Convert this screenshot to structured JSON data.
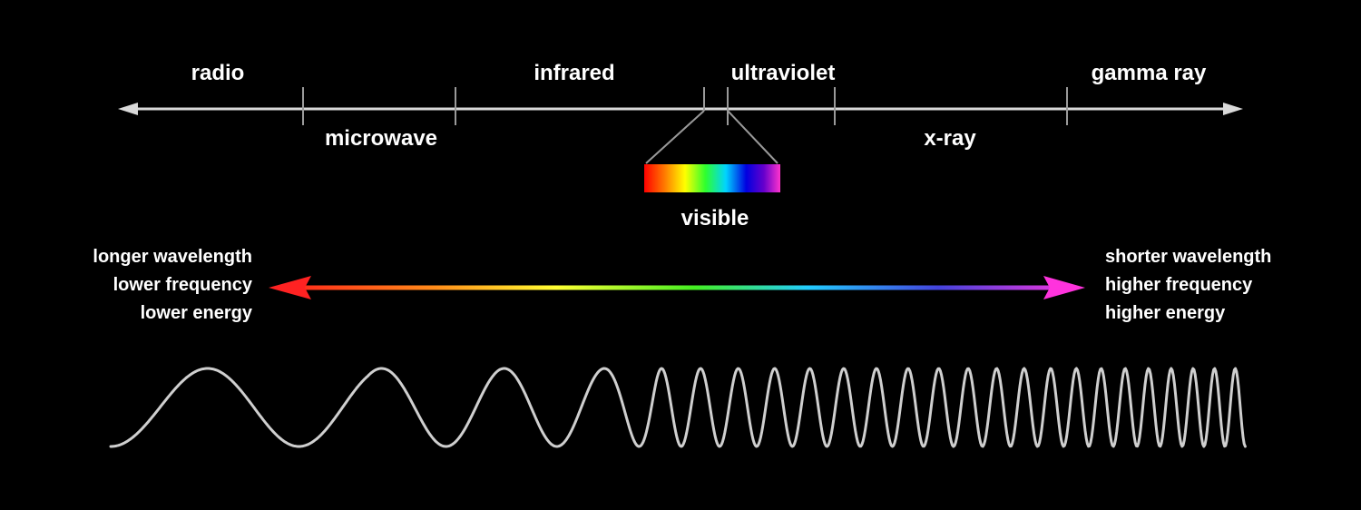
{
  "bands": {
    "radio": "radio",
    "microwave": "microwave",
    "infrared": "infrared",
    "ultraviolet": "ultraviolet",
    "xray": "x-ray",
    "gamma": "gamma ray",
    "visible": "visible"
  },
  "left_labels": [
    "longer wavelength",
    "lower frequency",
    "lower energy"
  ],
  "right_labels": [
    "shorter wavelength",
    "higher frequency",
    "higher energy"
  ],
  "colors": {
    "background": "#000000",
    "axis": "#d9d9d9",
    "text": "#ffffff",
    "gradient": [
      "#ff1a1a",
      "#ff8c1a",
      "#ffff1a",
      "#33ff33",
      "#1ae6ff",
      "#1a1aff",
      "#ff33ff"
    ]
  }
}
